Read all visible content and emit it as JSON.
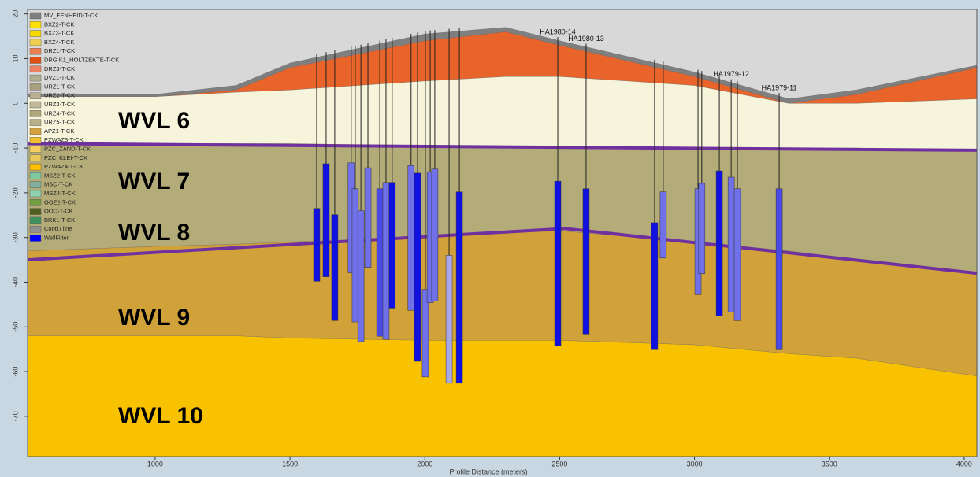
{
  "chart_data": {
    "type": "cross-section",
    "x_label": "Profile Distance (meters)",
    "xlim": [
      527,
      4047
    ],
    "xticks": [
      1000,
      1500,
      2000,
      2500,
      3000,
      3500,
      4000
    ],
    "ylim": [
      -79,
      21
    ],
    "yticks": [
      20,
      10,
      0,
      -10,
      -20,
      -30,
      -40,
      -50,
      -60,
      -70
    ],
    "layer_x": [
      527,
      1000,
      1300,
      1500,
      2000,
      2300,
      2500,
      3000,
      3350,
      3600,
      4047
    ],
    "layers": [
      {
        "color": "#7f7f7f",
        "top": [
          2,
          2,
          4,
          9,
          15.5,
          17,
          14,
          7,
          1,
          3,
          8.5
        ]
      },
      {
        "color": "#e8642a",
        "top": [
          1.5,
          1.5,
          3,
          8,
          14,
          16,
          13,
          6,
          0,
          2,
          8
        ]
      },
      {
        "color": "#f7f4dc",
        "top": [
          1.5,
          1.5,
          2.5,
          3,
          5,
          6,
          6,
          4,
          0,
          0,
          1
        ]
      },
      {
        "color": "#b3ab78",
        "top": [
          -9,
          -9,
          -9,
          -9,
          -9.5,
          -9.8,
          -10,
          -10,
          -10,
          -10,
          -10.5
        ]
      },
      {
        "color": "#d2a23a",
        "top": [
          -33,
          -32,
          -31.5,
          -31,
          -30,
          -29,
          -28.5,
          -31,
          -33,
          -35,
          -38
        ]
      },
      {
        "color": "#f8c200",
        "top": [
          -52,
          -52,
          -52,
          -52.5,
          -53,
          -53,
          -53,
          -54,
          -56,
          -57,
          -61
        ]
      }
    ],
    "boundaries": [
      {
        "color": "#7030a0",
        "x": [
          527,
          4047
        ],
        "y": [
          -9,
          -10.5
        ]
      },
      {
        "color": "#7030a0",
        "x": [
          527,
          2520,
          4047
        ],
        "y": [
          -35,
          -28,
          -38
        ]
      }
    ],
    "zone_labels": [
      "WVL 6",
      "WVL 7",
      "WVL 8",
      "WVL 9",
      "WVL 10"
    ],
    "wells": [
      {
        "x": 1599,
        "top": -23.5,
        "bottom": -39.8,
        "color": "#1010e0"
      },
      {
        "x": 1634,
        "top": -13.5,
        "bottom": -38.8,
        "color": "#1010e0"
      },
      {
        "x": 1666,
        "top": -24.9,
        "bottom": -48.6,
        "color": "#1010e0"
      },
      {
        "x": 1727,
        "top": -13.3,
        "bottom": -37.9,
        "color": "#7070e8"
      },
      {
        "x": 1742,
        "top": -19.1,
        "bottom": -48.9,
        "color": "#7070e8"
      },
      {
        "x": 1763,
        "top": -24,
        "bottom": -53.3,
        "color": "#7070e8"
      },
      {
        "x": 1789,
        "top": -14.4,
        "bottom": -36.7,
        "color": "#7070e8"
      },
      {
        "x": 1833,
        "top": -19.1,
        "bottom": -52.1,
        "color": "#4a4ae8"
      },
      {
        "x": 1856,
        "top": -17.7,
        "bottom": -52.8,
        "color": "#7070e8"
      },
      {
        "x": 1879,
        "top": -17.7,
        "bottom": -45.8,
        "color": "#1010e0"
      },
      {
        "x": 1949,
        "top": -13.9,
        "bottom": -46.3,
        "color": "#7070e8"
      },
      {
        "x": 1973,
        "top": -15.6,
        "bottom": -57.7,
        "color": "#1010e0"
      },
      {
        "x": 2002,
        "top": -41.6,
        "bottom": -61.2,
        "color": "#7070e8"
      },
      {
        "x": 2020,
        "top": -15.3,
        "bottom": -44.6,
        "color": "#7070e8"
      },
      {
        "x": 2037,
        "top": -14.7,
        "bottom": -44.2,
        "color": "#7070e8"
      },
      {
        "x": 2090,
        "top": -34,
        "bottom": -62.6,
        "color": "#a8a8e8"
      },
      {
        "x": 2128,
        "top": -19.8,
        "bottom": -62.6,
        "color": "#1010e0"
      },
      {
        "x": 2493,
        "top": -17.4,
        "bottom": -54.2,
        "color": "#1010e0",
        "label": "HA1980-14"
      },
      {
        "x": 2598,
        "top": -19.1,
        "bottom": -51.6,
        "color": "#1010e0",
        "label": "HA1980-13"
      },
      {
        "x": 2852,
        "top": -26.7,
        "bottom": -55.1,
        "color": "#1010e0"
      },
      {
        "x": 2884,
        "top": -19.8,
        "bottom": -34.6,
        "color": "#7070e8"
      },
      {
        "x": 3013,
        "top": -19.1,
        "bottom": -42.8,
        "color": "#7070e8"
      },
      {
        "x": 3027,
        "top": -17.9,
        "bottom": -38.1,
        "color": "#7070e8"
      },
      {
        "x": 3092,
        "top": -15.1,
        "bottom": -47.6,
        "color": "#1010e0"
      },
      {
        "x": 3136,
        "top": -16.5,
        "bottom": -46.7,
        "color": "#7070e8",
        "label": "HA1979-12"
      },
      {
        "x": 3159,
        "top": -19.1,
        "bottom": -48.6,
        "color": "#7070e8"
      },
      {
        "x": 3314,
        "top": -19.1,
        "bottom": -55.1,
        "color": "#4a4ae8",
        "label": "HA1979-11"
      }
    ],
    "legend": [
      {
        "name": "MV_EENHEID-T-CK",
        "color": "#7f7f7f"
      },
      {
        "name": "BXZ2-T-CK",
        "color": "#ffe000"
      },
      {
        "name": "BXZ3-T-CK",
        "color": "#f5d800"
      },
      {
        "name": "BXZ4-T-CK",
        "color": "#f0d050"
      },
      {
        "name": "DRZ1-T-CK",
        "color": "#f08050"
      },
      {
        "name": "DRGIK1_HOLTZEKTE-T-CK",
        "color": "#e05010"
      },
      {
        "name": "DRZ3-T-CK",
        "color": "#f08060"
      },
      {
        "name": "DVZ1-T-CK",
        "color": "#b0b090"
      },
      {
        "name": "URZ1-T-CK",
        "color": "#a8a080"
      },
      {
        "name": "URZ2-T-CK",
        "color": "#b8b090"
      },
      {
        "name": "URZ3-T-CK",
        "color": "#c0b898"
      },
      {
        "name": "URZ4-T-CK",
        "color": "#b0a878"
      },
      {
        "name": "URZ5-T-CK",
        "color": "#b8b088"
      },
      {
        "name": "APZ1-T-CK",
        "color": "#d4a040"
      },
      {
        "name": "PZWAZ3-T-CK",
        "color": "#f0c030"
      },
      {
        "name": "PZC_ZAND-T-CK",
        "color": "#f5d060"
      },
      {
        "name": "PZC_KLEI-T-CK",
        "color": "#e8c858"
      },
      {
        "name": "PZWAZ4-T-CK",
        "color": "#ffc000"
      },
      {
        "name": "MSZ2-T-CK",
        "color": "#80c8a0"
      },
      {
        "name": "MSC-T-CK",
        "color": "#80b0a0"
      },
      {
        "name": "MSZ4-T-CK",
        "color": "#90d0b0"
      },
      {
        "name": "OOZ2-T-CK",
        "color": "#70a040"
      },
      {
        "name": "OOC-T-CK",
        "color": "#506020"
      },
      {
        "name": "BRK1-T-CK",
        "color": "#409060"
      },
      {
        "name": "Contl / line",
        "color": "#909090"
      },
      {
        "name": "WellFilter",
        "color": "#0000ff"
      }
    ]
  }
}
